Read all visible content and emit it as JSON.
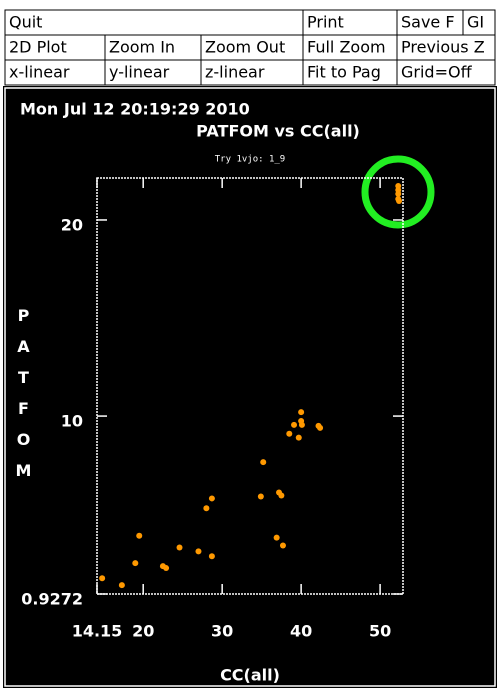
{
  "menu": {
    "rows": [
      [
        "Quit",
        "Print",
        "Save F",
        "GI"
      ],
      [
        "2D Plot",
        "Zoom In",
        "Zoom Out",
        "Full Zoom",
        "Previous Z"
      ],
      [
        "x-linear",
        "y-linear",
        "z-linear",
        "Fit to Pag",
        "Grid=Off"
      ]
    ]
  },
  "chart_data": {
    "type": "scatter",
    "timestamp": "Mon Jul 12 20:19:29 2010",
    "title": "PATFOM vs CC(all)",
    "subtitle": "Try  1vjo: 1_9",
    "x_label": "CC(all)",
    "y_label": "PATFOM",
    "series": [
      {
        "color": "#ff9900",
        "x": [
          14.8,
          17.3,
          19.0,
          19.5,
          22.5,
          22.9,
          24.6,
          27.0,
          28.0,
          28.7,
          28.7,
          34.9,
          35.2,
          36.9,
          37.2,
          37.5,
          37.7,
          38.5,
          39.1,
          39.7,
          40.0,
          40.0,
          40.1,
          42.2,
          42.4,
          52.3,
          52.3,
          52.3,
          52.3,
          52.4
        ],
        "y": [
          1.73,
          1.38,
          2.5,
          3.9,
          2.35,
          2.25,
          3.3,
          3.1,
          5.3,
          5.8,
          2.85,
          5.9,
          7.65,
          3.8,
          6.1,
          5.95,
          3.4,
          9.1,
          9.55,
          8.9,
          10.2,
          9.75,
          9.55,
          9.5,
          9.4,
          21.73,
          21.53,
          21.33,
          21.07,
          20.97
        ]
      }
    ],
    "xlim": [
      14.15,
      52.9
    ],
    "xticks": [
      14.15,
      20,
      30,
      40,
      50
    ],
    "ylim": [
      0.9272,
      22.14
    ],
    "yticks": [
      0.9272,
      10,
      20
    ]
  }
}
